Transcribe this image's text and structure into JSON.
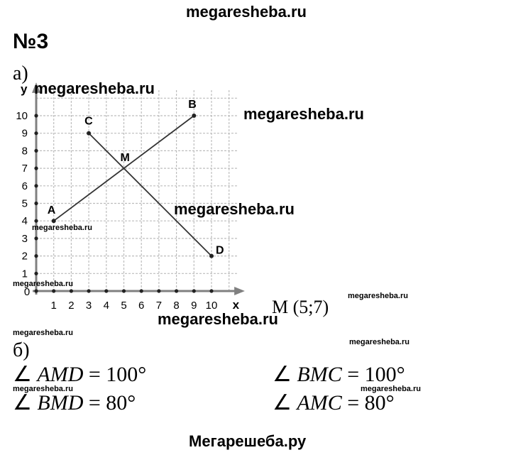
{
  "watermarks": {
    "header": "megaresheba.ru",
    "footer": "Мегарешеба.ру",
    "large": [
      "megaresheba.ru",
      "megaresheba.ru",
      "megaresheba.ru",
      "megaresheba.ru"
    ],
    "small": [
      "megaresheba.ru",
      "megaresheba.ru",
      "megaresheba.ru",
      "megaresheba.ru",
      "megaresheba.ru",
      "megaresheba.ru",
      "megaresheba.ru"
    ]
  },
  "task_number": "№3",
  "part_a": {
    "label": "а)",
    "answer": "M (5;7)"
  },
  "part_b": {
    "label": "б)",
    "angles": [
      {
        "symbol": "∠",
        "name": "AMD",
        "value": "= 100°"
      },
      {
        "symbol": "∠",
        "name": "BMC",
        "value": "= 100°"
      },
      {
        "symbol": "∠",
        "name": "BMD",
        "value": "= 80°"
      },
      {
        "symbol": "∠",
        "name": "AMC",
        "value": "= 80°"
      }
    ]
  },
  "graph": {
    "axis_x_label": "x",
    "axis_y_label": "y",
    "origin_label": "0",
    "x_ticks": [
      "1",
      "2",
      "3",
      "4",
      "5",
      "6",
      "7",
      "8",
      "9",
      "10"
    ],
    "y_ticks": [
      "1",
      "2",
      "3",
      "4",
      "5",
      "6",
      "7",
      "8",
      "9",
      "10"
    ],
    "points": [
      {
        "label": "A",
        "x": 1,
        "y": 4
      },
      {
        "label": "B",
        "x": 9,
        "y": 10
      },
      {
        "label": "C",
        "x": 3,
        "y": 9
      },
      {
        "label": "D",
        "x": 10,
        "y": 2
      },
      {
        "label": "M",
        "x": 5,
        "y": 7
      }
    ],
    "segments": [
      [
        "A",
        "B"
      ],
      [
        "C",
        "D"
      ]
    ],
    "grid": true
  }
}
